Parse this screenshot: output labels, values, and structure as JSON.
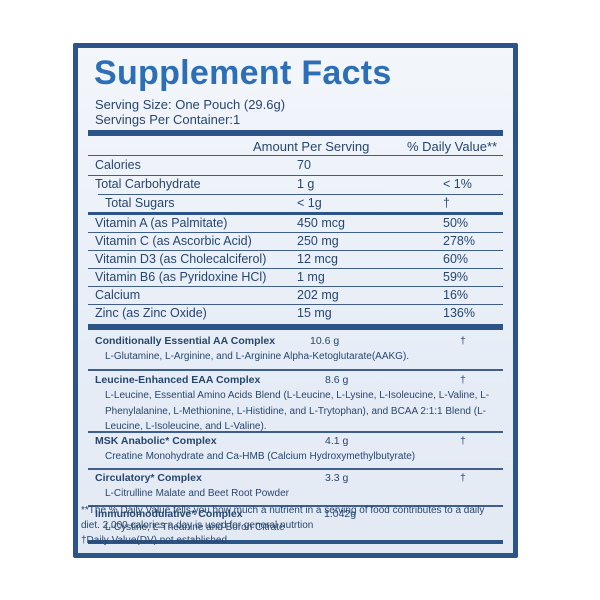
{
  "label": {
    "title": "Supplement Facts",
    "serving_size": "Serving Size: One Pouch (29.6g)",
    "servings_per_container": "Servings Per Container:1",
    "amount_header": "Amount Per Serving",
    "dv_header": "% Daily Value**"
  },
  "nutrients": [
    {
      "name": "Calories",
      "amount": "70",
      "dv": ""
    },
    {
      "name": "Total Carbohydrate",
      "amount": "1 g",
      "dv": "< 1%"
    },
    {
      "name": "Total Sugars",
      "amount": "< 1g",
      "dv": "†"
    },
    {
      "name": "Vitamin A (as Palmitate)",
      "amount": "450 mcg",
      "dv": "50%"
    },
    {
      "name": "Vitamin C (as Ascorbic Acid)",
      "amount": "250 mg",
      "dv": "278%"
    },
    {
      "name": "Vitamin D3 (as Cholecalciferol)",
      "amount": "12 mcg",
      "dv": "60%"
    },
    {
      "name": "Vitamin B6 (as Pyridoxine HCl)",
      "amount": "1 mg",
      "dv": "59%"
    },
    {
      "name": "Calcium",
      "amount": "202 mg",
      "dv": "16%"
    },
    {
      "name": "Zinc (as Zinc Oxide)",
      "amount": "15 mg",
      "dv": "136%"
    }
  ],
  "complexes": [
    {
      "name": "Conditionally Essential AA Complex",
      "amount": "10.6 g",
      "dv": "†",
      "desc": "L-Glutamine, L-Arginine, and L-Arginine Alpha-Ketoglutarate(AAKG)."
    },
    {
      "name": "Leucine-Enhanced EAA Complex",
      "amount": "8.6 g",
      "dv": "†",
      "desc": "L-Leucine, Essential Amino Acids Blend (L-Leucine, L-Lysine, L-Isoleucine, L-Valine, L-Phenylalanine, L-Methionine, L-Histidine, and L-Trytophan), and BCAA 2:1:1 Blend (L-Leucine, L-Isoleucine, and L-Valine)."
    },
    {
      "name": "MSK Anabolic* Complex",
      "amount": "4.1 g",
      "dv": "†",
      "desc": "Creatine Monohydrate and Ca-HMB (Calcium Hydroxymethylbutyrate)"
    },
    {
      "name": "Circulatory* Complex",
      "amount": "3.3 g",
      "dv": "†",
      "desc": "L-Citrulline Malate and Beet Root Powder"
    },
    {
      "name": "Immunomodulative* Complex",
      "amount": "1.042g",
      "dv": "",
      "desc": "L-Cystine, L-Theanine and Boron Citrate"
    }
  ],
  "footnotes": {
    "dv_note": "**The % Daily Value tells you how much a nutrient in a serving of food contributes to a daily diet. 2,000 calories a day is used for general nutrtion",
    "dagger_note": "†Daily Value(DV) not established"
  }
}
